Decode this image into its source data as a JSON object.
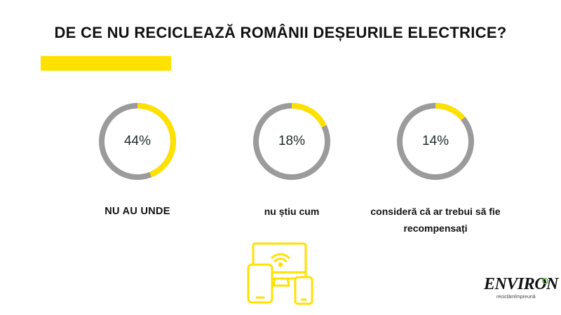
{
  "title": "DE CE NU RECICLEAZĂ ROMÂNII DEȘEURILE ELECTRICE?",
  "colors": {
    "accent": "#ffe100",
    "track": "#9b9b9b",
    "text": "#111111"
  },
  "logo": {
    "name": "ENVIRON",
    "tagline": "reciclămîmpreună"
  },
  "chart_data": {
    "type": "pie",
    "style": "donut",
    "categories": [
      "NU AU UNDE",
      "nu știu cum",
      "consideră că ar trebui să fie recompensați"
    ],
    "values": [
      44,
      18,
      14
    ],
    "value_labels": [
      "44%",
      "18%",
      "14%"
    ],
    "title": "DE CE NU RECICLEAZĂ ROMÂNII DEȘEURILE ELECTRICE?"
  }
}
